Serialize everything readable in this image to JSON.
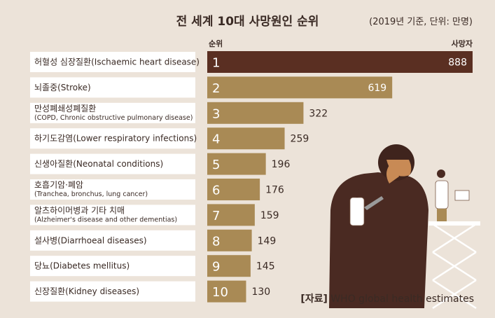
{
  "title": "전 세계 10대 사망원인 순위",
  "unit_note": "(2019년 기준, 단위: 만명)",
  "source_prefix": "[자료]",
  "source_text": "WHO global health estimates",
  "colors": {
    "background": "#ece3d9",
    "top_bar": "#5a2f22",
    "other_bars": "#a98a55",
    "label_box": "#ffffff",
    "text": "#3a2a24"
  },
  "chart_data": {
    "type": "bar",
    "orientation": "horizontal",
    "rank_header": "순위",
    "value_header": "사망자",
    "xlim": [
      0,
      888
    ],
    "categories": [
      {
        "rank": "1",
        "label": "허혈성 심장질환(Ischaemic heart disease)",
        "sub": ""
      },
      {
        "rank": "2",
        "label": "뇌졸중(Stroke)",
        "sub": ""
      },
      {
        "rank": "3",
        "label": "만성폐쇄성폐질환",
        "sub": "(COPD, Chronic obstructive pulmonary disease)"
      },
      {
        "rank": "4",
        "label": "하기도감염(Lower respiratory infections)",
        "sub": ""
      },
      {
        "rank": "5",
        "label": "신생아질환(Neonatal conditions)",
        "sub": ""
      },
      {
        "rank": "6",
        "label": "호흡기암·폐암",
        "sub": "(Tranchea, bronchus, lung cancer)"
      },
      {
        "rank": "7",
        "label": "알츠하이머병과 기타 치매",
        "sub": "(Alzheimer's disease and other dementias)"
      },
      {
        "rank": "8",
        "label": "설사병(Diarrhoeal diseases)",
        "sub": ""
      },
      {
        "rank": "9",
        "label": "당뇨(Diabetes mellitus)",
        "sub": ""
      },
      {
        "rank": "10",
        "label": "신장질환(Kidney diseases)",
        "sub": ""
      }
    ],
    "values": [
      888,
      619,
      322,
      259,
      196,
      176,
      159,
      149,
      145,
      130
    ]
  }
}
